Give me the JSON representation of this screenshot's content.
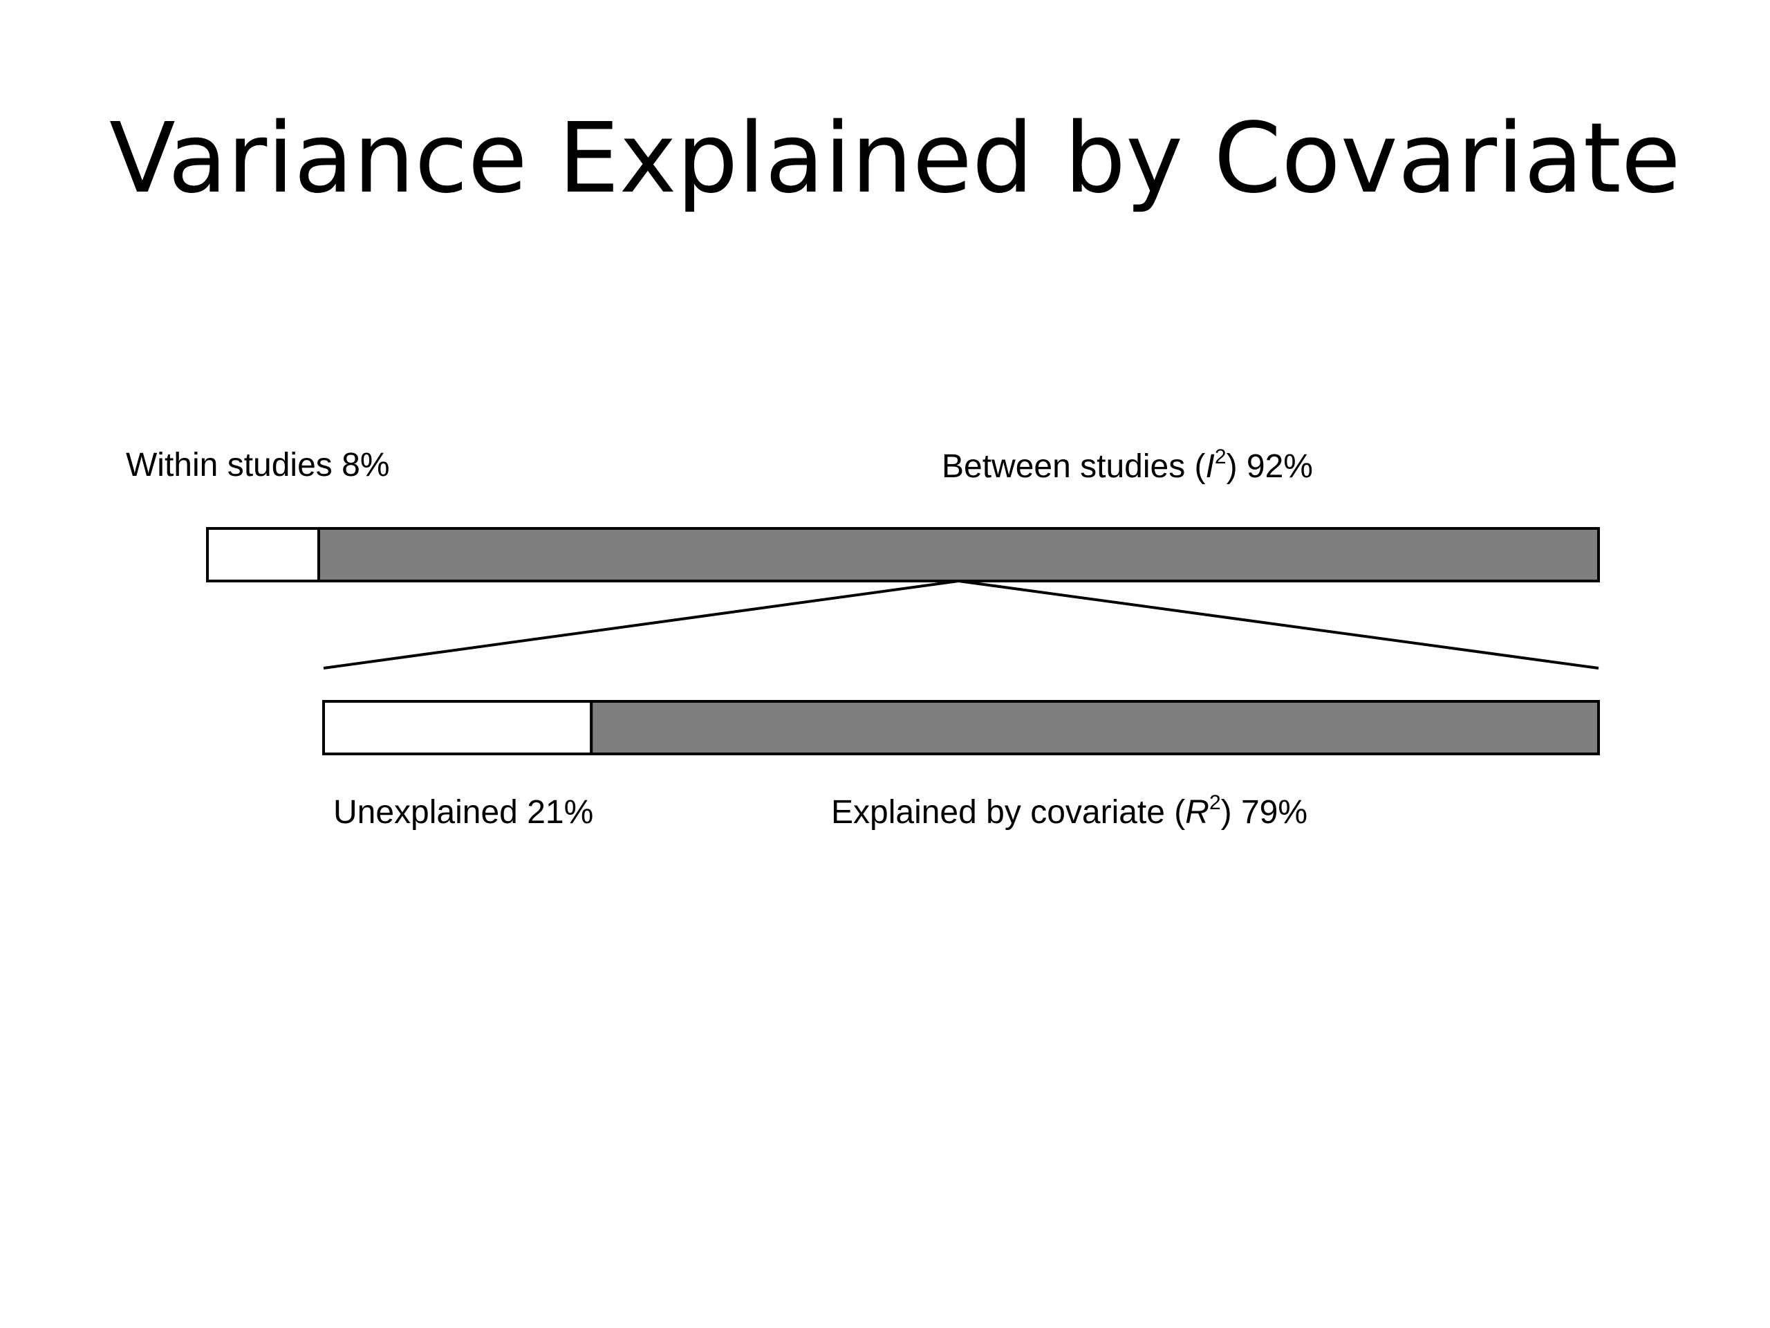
{
  "slide": {
    "title": "Variance Explained by Covariate"
  },
  "diagram": {
    "top_bar": {
      "segments": [
        {
          "text": "Within studies 8%",
          "share": 0.08,
          "fill": "#ffffff"
        },
        {
          "text_before": "Between studies (",
          "text_var": "I",
          "text_sup": "2",
          "text_after": ") 92%",
          "share": 0.92,
          "fill": "#7f7f7f"
        }
      ]
    },
    "bottom_bar": {
      "segments": [
        {
          "text": "Unexplained 21%",
          "share": 0.21,
          "fill": "#ffffff"
        },
        {
          "text_before": "Explained by covariate (",
          "text_var": "R",
          "text_sup": "2",
          "text_after": ") 79%",
          "share": 0.79,
          "fill": "#7f7f7f"
        }
      ]
    },
    "colors": {
      "outline": "#000000",
      "shaded": "#7f7f7f",
      "unshaded": "#ffffff"
    }
  }
}
